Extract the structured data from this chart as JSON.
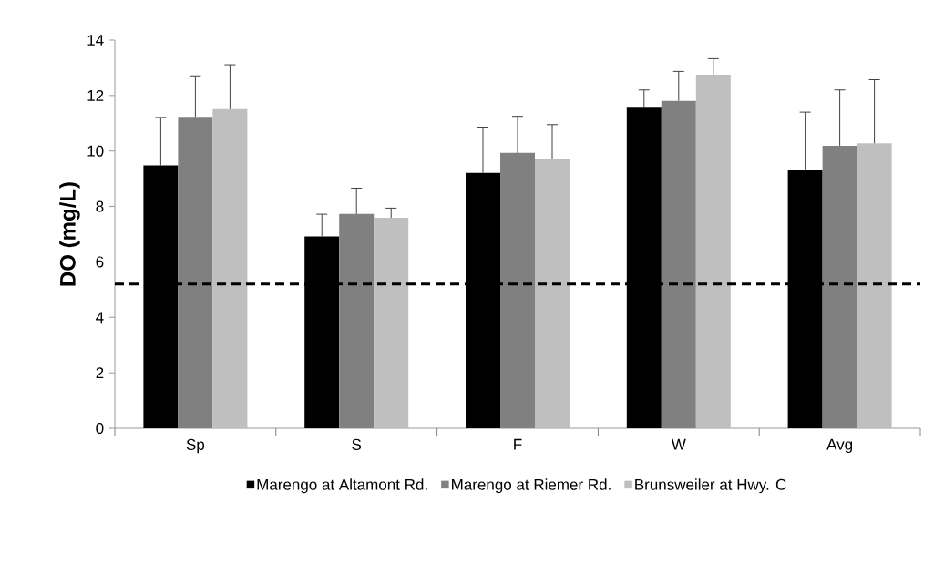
{
  "chart_data": {
    "type": "bar",
    "ylabel": "DO (mg/L)",
    "categories": [
      "Sp",
      "S",
      "F",
      "W",
      "Avg"
    ],
    "series": [
      {
        "name": "Marengo at Altamont Rd.",
        "color": "#000000",
        "values": [
          9.48,
          6.92,
          9.21,
          11.59,
          9.31
        ],
        "errors": [
          1.73,
          0.8,
          1.65,
          0.61,
          2.09
        ]
      },
      {
        "name": "Marengo at Riemer Rd.",
        "color": "#808080",
        "values": [
          11.23,
          7.73,
          9.93,
          11.81,
          10.19
        ],
        "errors": [
          1.48,
          0.93,
          1.32,
          1.06,
          2.01
        ]
      },
      {
        "name": "Brunsweiler at Hwy. C",
        "color": "#bfbfbf",
        "values": [
          11.51,
          7.59,
          9.7,
          12.75,
          10.28
        ],
        "errors": [
          1.6,
          0.35,
          1.25,
          0.58,
          2.29
        ]
      }
    ],
    "ylim": [
      0,
      14
    ],
    "yticks": [
      0,
      2,
      4,
      6,
      8,
      10,
      12,
      14
    ],
    "ref_lines": [
      {
        "axis": "y",
        "value": 5.2,
        "color": "#000000",
        "line_style": "dashed"
      }
    ],
    "legend": "bottom"
  }
}
